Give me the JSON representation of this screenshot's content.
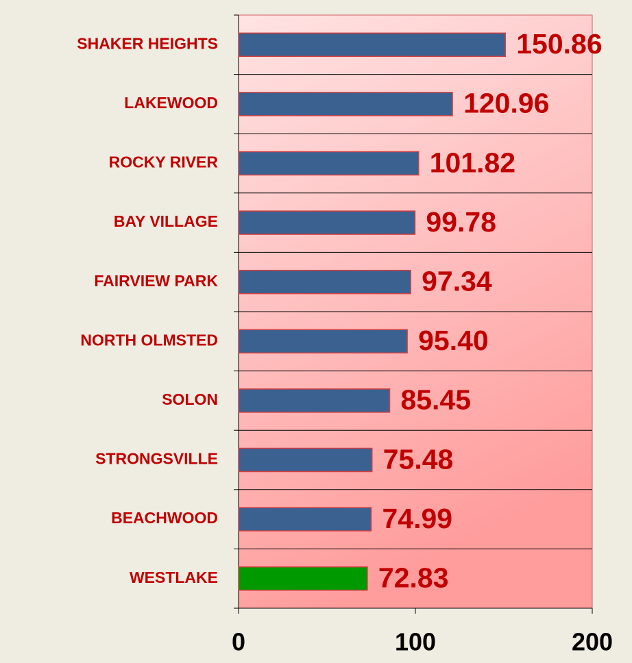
{
  "chart_data": {
    "type": "bar",
    "orientation": "horizontal",
    "categories": [
      "SHAKER HEIGHTS",
      "LAKEWOOD",
      "ROCKY RIVER",
      "BAY VILLAGE",
      "FAIRVIEW PARK",
      "NORTH OLMSTED",
      "SOLON",
      "STRONGSVILLE",
      "BEACHWOOD",
      "WESTLAKE"
    ],
    "values": [
      150.86,
      120.96,
      101.82,
      99.78,
      97.34,
      95.4,
      85.45,
      75.48,
      74.99,
      72.83
    ],
    "value_labels": [
      "150.86",
      "120.96",
      "101.82",
      "99.78",
      "97.34",
      "95.40",
      "85.45",
      "75.48",
      "74.99",
      "72.83"
    ],
    "colors": [
      "#3b6191",
      "#3b6191",
      "#3b6191",
      "#3b6191",
      "#3b6191",
      "#3b6191",
      "#3b6191",
      "#3b6191",
      "#3b6191",
      "#009a00"
    ],
    "xlim": [
      0,
      200
    ],
    "xticks": [
      0,
      100,
      200
    ],
    "grid": true
  }
}
